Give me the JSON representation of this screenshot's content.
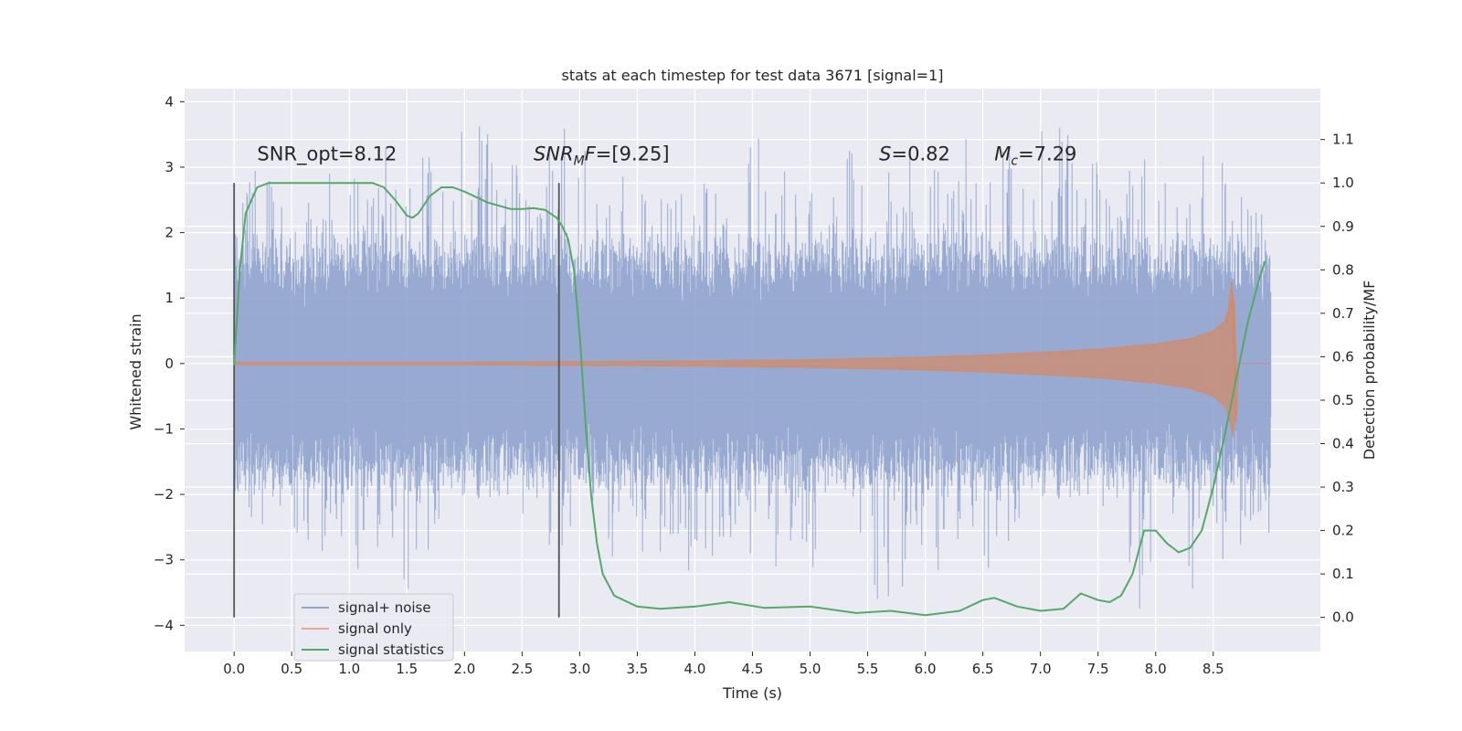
{
  "chart_data": {
    "type": "line",
    "title": "stats at each timestep for test data 3671 [signal=1]",
    "xlabel": "Time (s)",
    "ylabel": "Whitened strain",
    "y2label": "Detection probability/MF",
    "xlim": [
      -0.43,
      9.43
    ],
    "ylim": [
      -4.4,
      4.2
    ],
    "y2lim": [
      -0.0785,
      1.2171
    ],
    "x_ticks": [
      0.0,
      0.5,
      1.0,
      1.5,
      2.0,
      2.5,
      3.0,
      3.5,
      4.0,
      4.5,
      5.0,
      5.5,
      6.0,
      6.5,
      7.0,
      7.5,
      8.0,
      8.5
    ],
    "x_tick_labels": [
      "0.0",
      "0.5",
      "1.0",
      "1.5",
      "2.0",
      "2.5",
      "3.0",
      "3.5",
      "4.0",
      "4.5",
      "5.0",
      "5.5",
      "6.0",
      "6.5",
      "7.0",
      "7.5",
      "8.0",
      "8.5"
    ],
    "y_ticks": [
      -4,
      -3,
      -2,
      -1,
      0,
      1,
      2,
      3,
      4
    ],
    "y_tick_labels": [
      "−4",
      "−3",
      "−2",
      "−1",
      "0",
      "1",
      "2",
      "3",
      "4"
    ],
    "y2_ticks": [
      0.0,
      0.1,
      0.2,
      0.3,
      0.4,
      0.5,
      0.6,
      0.7,
      0.8,
      0.9,
      1.0,
      1.1
    ],
    "y2_tick_labels": [
      "0.0",
      "0.1",
      "0.2",
      "0.3",
      "0.4",
      "0.5",
      "0.6",
      "0.7",
      "0.8",
      "0.9",
      "1.0",
      "1.1"
    ],
    "grid": true,
    "legend_placement": "lower-left",
    "legend": [
      {
        "label": "signal+ noise",
        "color": "#8fa3cd"
      },
      {
        "label": "signal only",
        "color": "#e8a990"
      },
      {
        "label": "signal statistics",
        "color": "#55a868"
      }
    ],
    "vertical_lines": [
      0.0,
      2.82
    ],
    "annotations": [
      {
        "plain": "SNR_opt=8.12",
        "x": 0.2,
        "y": 3.2
      },
      {
        "math": "SNR",
        "sub": "M",
        "tail": "F=[9.25]",
        "x": 2.6,
        "y": 3.2
      },
      {
        "math": "S",
        "sub": "",
        "tail": "=0.82",
        "x": 5.6,
        "y": 3.2
      },
      {
        "math": "M",
        "sub": "c",
        "tail": "=7.29",
        "x": 6.6,
        "y": 3.2
      }
    ],
    "series": [
      {
        "name": "signal+ noise",
        "axis": "left",
        "x_range": [
          0.0,
          9.0
        ],
        "envelope": {
          "x": [
            0.0,
            0.5,
            1.0,
            1.5,
            2.0,
            2.5,
            3.0,
            3.5,
            4.0,
            4.5,
            5.0,
            5.5,
            6.0,
            6.5,
            7.0,
            7.5,
            8.0,
            8.5,
            9.0
          ],
          "typical_amplitude": [
            1.8,
            1.8,
            1.8,
            1.8,
            1.8,
            1.8,
            1.8,
            1.8,
            1.8,
            1.8,
            1.8,
            1.8,
            1.8,
            1.8,
            1.8,
            1.8,
            1.8,
            1.8,
            1.8
          ],
          "peak_max": [
            3.0,
            2.6,
            3.0,
            3.2,
            3.8,
            3.0,
            3.7,
            2.6,
            2.9,
            3.7,
            2.9,
            3.4,
            3.2,
            3.3,
            3.8,
            3.1,
            3.0,
            3.3,
            2.2
          ],
          "peak_min": [
            -2.4,
            -2.6,
            -3.0,
            -3.4,
            -3.2,
            -3.4,
            -2.9,
            -3.1,
            -2.9,
            -3.2,
            -3.3,
            -3.9,
            -3.1,
            -3.0,
            -3.4,
            -2.9,
            -4.0,
            -3.4,
            -2.3
          ]
        }
      },
      {
        "name": "signal only",
        "axis": "left",
        "x": [
          0.0,
          2.0,
          3.0,
          4.0,
          5.0,
          5.5,
          6.0,
          6.5,
          7.0,
          7.5,
          8.0,
          8.3,
          8.5,
          8.6,
          8.65,
          8.68,
          8.7,
          9.0
        ],
        "amplitude": [
          0.02,
          0.02,
          0.03,
          0.04,
          0.06,
          0.08,
          0.1,
          0.13,
          0.17,
          0.22,
          0.3,
          0.38,
          0.5,
          0.65,
          0.9,
          1.2,
          0.0,
          0.0
        ]
      },
      {
        "name": "signal statistics",
        "axis": "right",
        "x": [
          0.0,
          0.05,
          0.1,
          0.15,
          0.2,
          0.3,
          0.5,
          0.8,
          1.0,
          1.2,
          1.3,
          1.4,
          1.5,
          1.55,
          1.6,
          1.7,
          1.8,
          1.9,
          2.0,
          2.2,
          2.4,
          2.5,
          2.6,
          2.7,
          2.8,
          2.85,
          2.9,
          2.95,
          3.0,
          3.05,
          3.1,
          3.15,
          3.2,
          3.3,
          3.5,
          3.7,
          4.0,
          4.3,
          4.6,
          5.0,
          5.4,
          5.7,
          6.0,
          6.3,
          6.5,
          6.6,
          6.8,
          7.0,
          7.2,
          7.35,
          7.5,
          7.6,
          7.7,
          7.8,
          7.9,
          8.0,
          8.1,
          8.2,
          8.3,
          8.4,
          8.5,
          8.6,
          8.7,
          8.8,
          8.9,
          8.95
        ],
        "y": [
          0.58,
          0.8,
          0.93,
          0.96,
          0.99,
          1.0,
          1.0,
          1.0,
          1.0,
          1.0,
          0.99,
          0.96,
          0.925,
          0.92,
          0.93,
          0.97,
          0.99,
          0.99,
          0.98,
          0.955,
          0.94,
          0.94,
          0.942,
          0.938,
          0.92,
          0.9,
          0.87,
          0.8,
          0.65,
          0.45,
          0.28,
          0.17,
          0.1,
          0.05,
          0.025,
          0.02,
          0.025,
          0.035,
          0.022,
          0.025,
          0.01,
          0.015,
          0.005,
          0.015,
          0.04,
          0.045,
          0.025,
          0.015,
          0.02,
          0.055,
          0.04,
          0.035,
          0.05,
          0.1,
          0.2,
          0.2,
          0.17,
          0.15,
          0.16,
          0.2,
          0.3,
          0.42,
          0.55,
          0.68,
          0.78,
          0.82
        ]
      }
    ]
  }
}
